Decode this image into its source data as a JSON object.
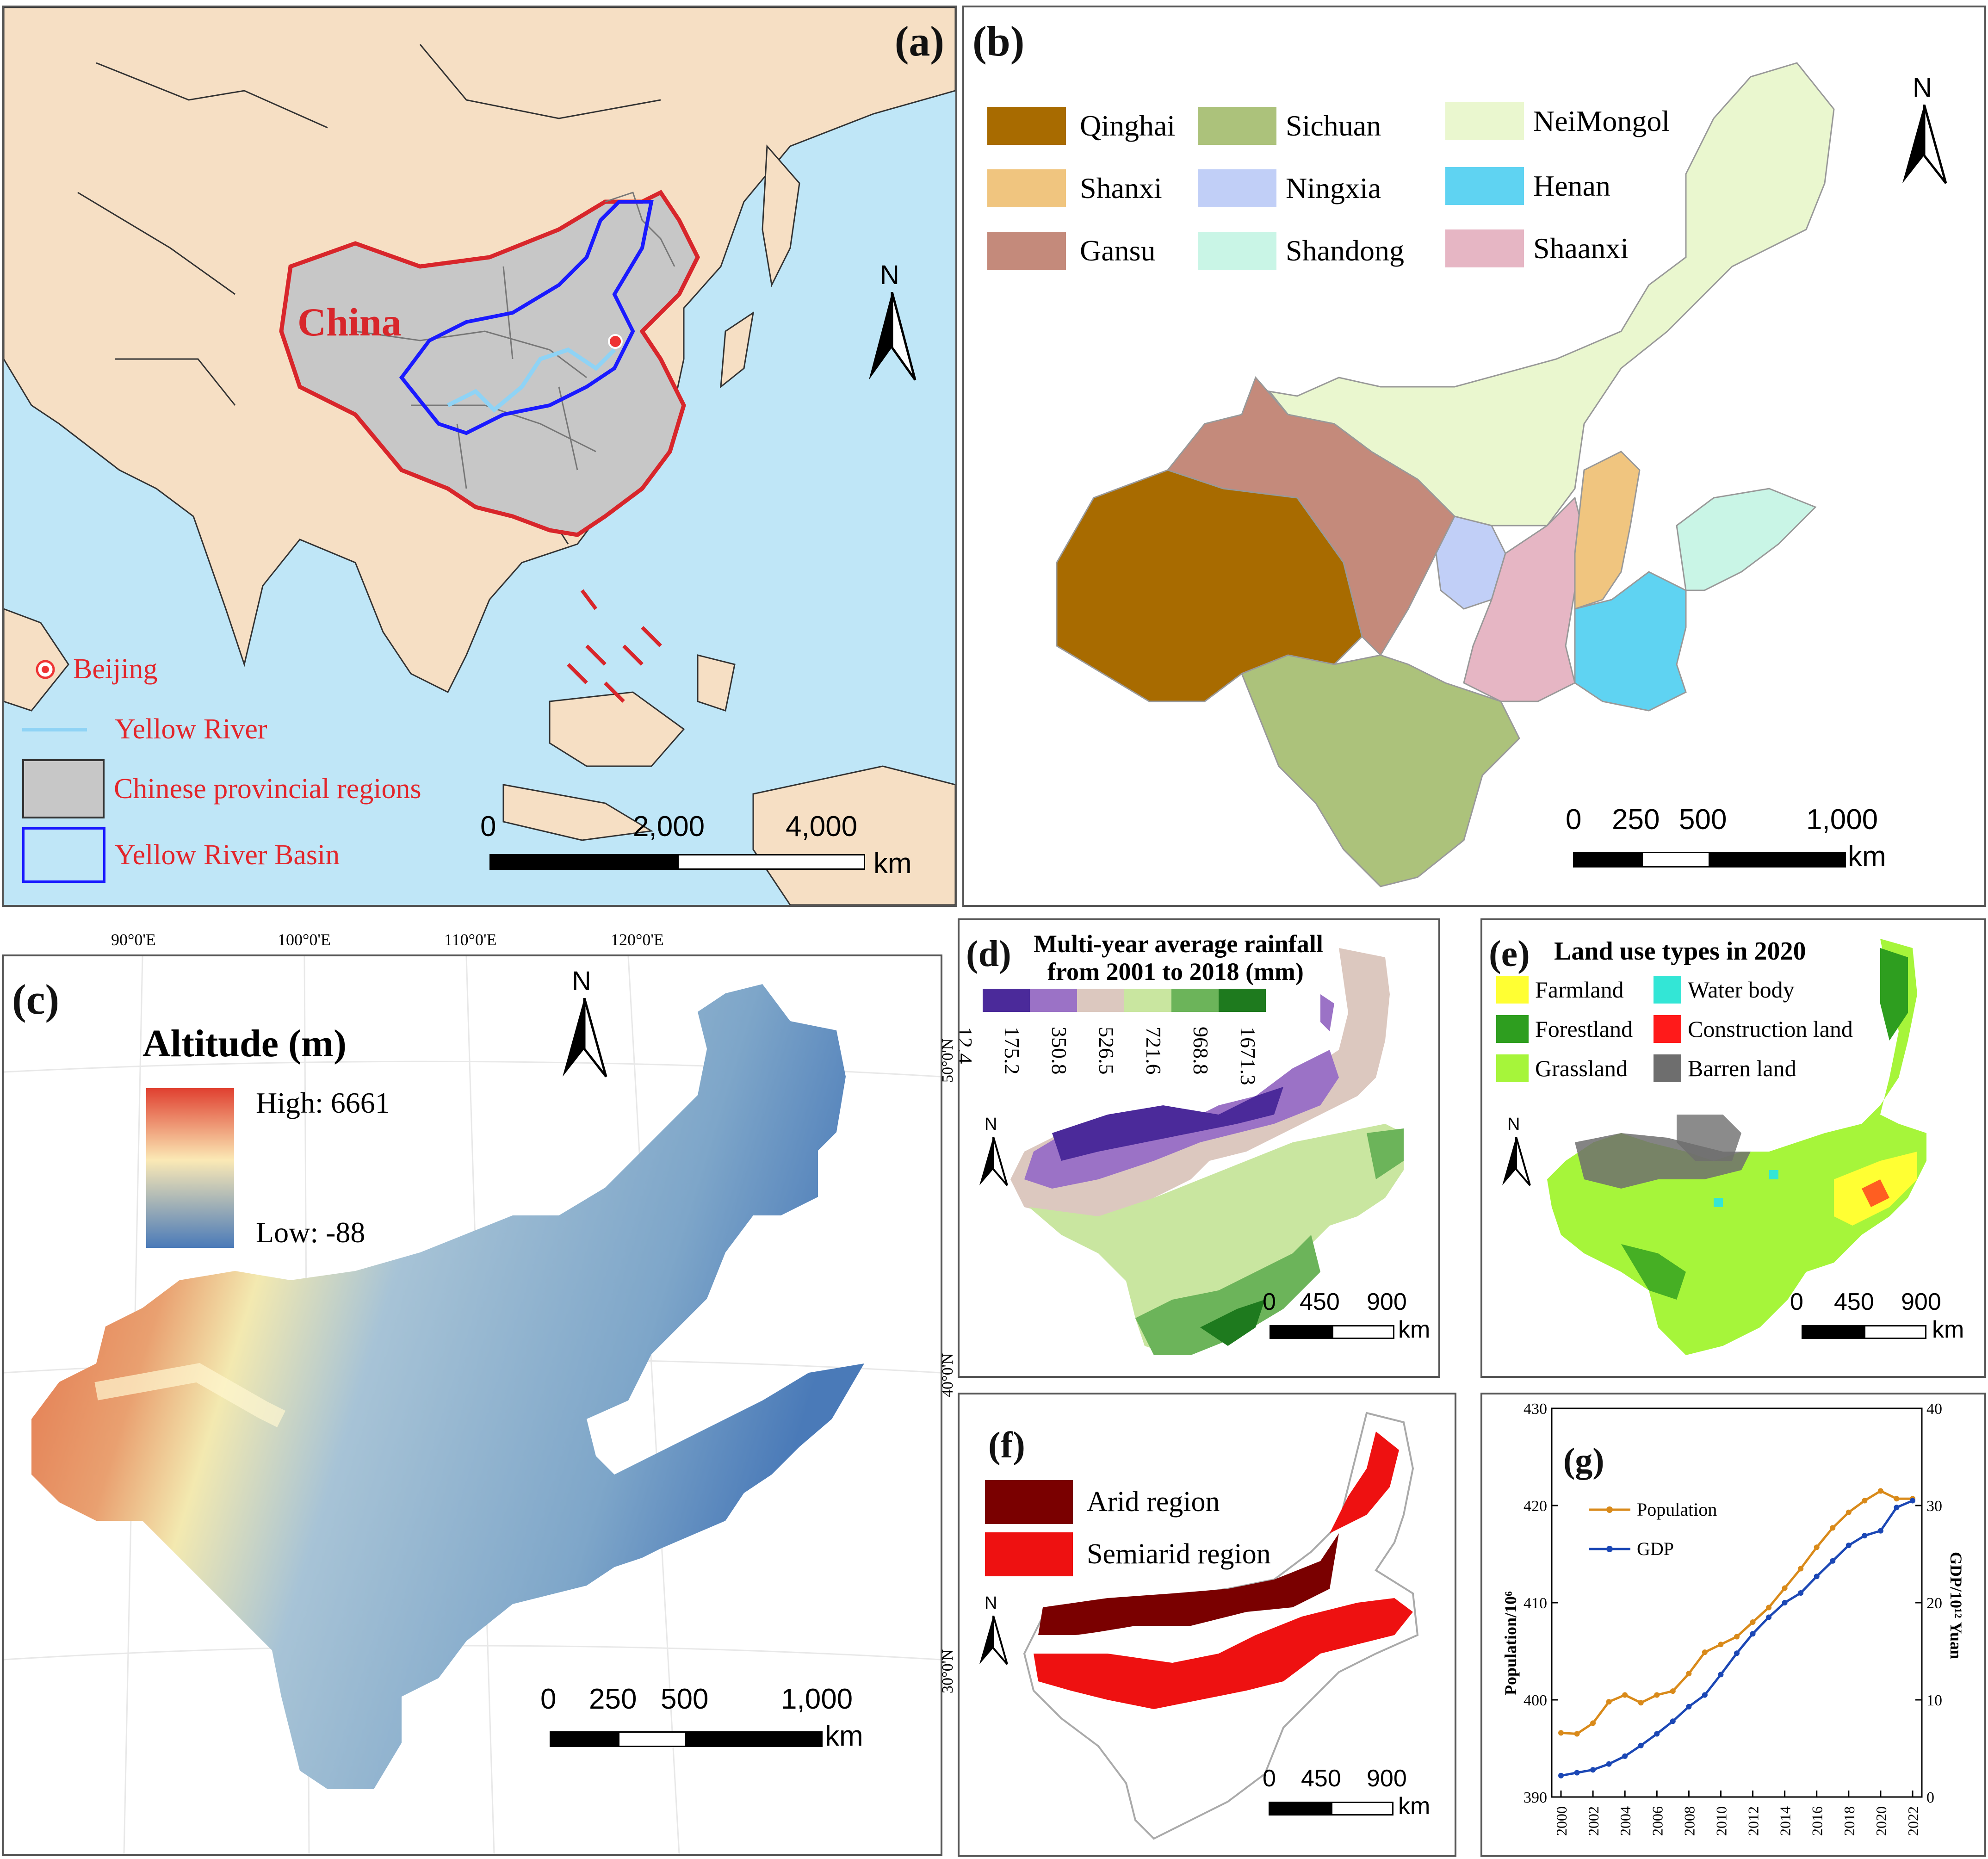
{
  "panel_a": {
    "label": "(a)",
    "china_label": "China",
    "legend": [
      {
        "key": "beijing",
        "text": "Beijing"
      },
      {
        "key": "river",
        "text": "Yellow River"
      },
      {
        "key": "provinces",
        "text": "Chinese provincial regions"
      },
      {
        "key": "basin",
        "text": "Yellow River Basin"
      }
    ],
    "north": "N",
    "scale": {
      "ticks": [
        "0",
        "2,000",
        "4,000"
      ],
      "unit": "km"
    }
  },
  "panel_b": {
    "label": "(b)",
    "north": "N",
    "legend": [
      {
        "name": "Qinghai",
        "color": "#a86b00"
      },
      {
        "name": "Sichuan",
        "color": "#acc27b"
      },
      {
        "name": "NeiMongol",
        "color": "#eaf7cf"
      },
      {
        "name": "Shanxi",
        "color": "#f0c57f"
      },
      {
        "name": "Ningxia",
        "color": "#c1cff7"
      },
      {
        "name": "Henan",
        "color": "#5fd3f2"
      },
      {
        "name": "Gansu",
        "color": "#c48a7b"
      },
      {
        "name": "Shandong",
        "color": "#c9f5e6"
      },
      {
        "name": "Shaanxi",
        "color": "#e6b6c4"
      }
    ],
    "scale": {
      "ticks": [
        "0",
        "250",
        "500",
        "1,000"
      ],
      "unit": "km"
    }
  },
  "panel_c": {
    "label": "(c)",
    "north": "N",
    "legend_title": "Altitude (m)",
    "high": "High: 6661",
    "low": "Low: -88",
    "lon_labels": [
      "90°0'E",
      "100°0'E",
      "110°0'E",
      "120°0'E"
    ],
    "lat_labels": [
      "50°0'N",
      "40°0'N",
      "30°0'N"
    ],
    "scale": {
      "ticks": [
        "0",
        "250",
        "500",
        "1,000"
      ],
      "unit": "km"
    }
  },
  "panel_d": {
    "label": "(d)",
    "title_line1": "Multi-year average rainfall",
    "title_line2": "from 2001 to 2018 (mm)",
    "north": "N",
    "class_colors": [
      "#4b2a9a",
      "#9b72c6",
      "#dcc8bf",
      "#c9e6a0",
      "#6cb45a",
      "#1e7a1e"
    ],
    "breaks": [
      "12.4",
      "175.2",
      "350.8",
      "526.5",
      "721.6",
      "968.8",
      "1671.3"
    ],
    "scale": {
      "ticks": [
        "0",
        "450",
        "900"
      ],
      "unit": "km"
    }
  },
  "panel_e": {
    "label": "(e)",
    "title": "Land use types in 2020",
    "north": "N",
    "legend": [
      {
        "name": "Farmland",
        "color": "#ffff33"
      },
      {
        "name": "Water body",
        "color": "#33e6d6"
      },
      {
        "name": "Forestland",
        "color": "#2e9e1f"
      },
      {
        "name": "Construction land",
        "color": "#ff1a1a"
      },
      {
        "name": "Grassland",
        "color": "#a6f53a"
      },
      {
        "name": "Barren land",
        "color": "#6e6e6e"
      }
    ],
    "scale": {
      "ticks": [
        "0",
        "450",
        "900"
      ],
      "unit": "km"
    }
  },
  "panel_f": {
    "label": "(f)",
    "north": "N",
    "legend": [
      {
        "name": "Arid region",
        "color": "#7a0000"
      },
      {
        "name": "Semiarid region",
        "color": "#ee1111"
      }
    ],
    "scale": {
      "ticks": [
        "0",
        "450",
        "900"
      ],
      "unit": "km"
    }
  },
  "panel_g": {
    "label": "(g)",
    "left_axis_label": "Population/10⁶",
    "right_axis_label": "GDP/10¹² Yuan"
  },
  "chart_data": {
    "type": "line",
    "x": [
      2000,
      2001,
      2002,
      2003,
      2004,
      2005,
      2006,
      2007,
      2008,
      2009,
      2010,
      2011,
      2012,
      2013,
      2014,
      2015,
      2016,
      2017,
      2018,
      2019,
      2020,
      2021,
      2022
    ],
    "x_ticks": [
      "2000",
      "2002",
      "2004",
      "2006",
      "2008",
      "2010",
      "2012",
      "2014",
      "2016",
      "2018",
      "2020",
      "2022"
    ],
    "y_left": {
      "ticks": [
        "390",
        "400",
        "410",
        "420",
        "430"
      ],
      "range": [
        390,
        430
      ]
    },
    "y_right": {
      "ticks": [
        "0",
        "10",
        "20",
        "30",
        "40"
      ],
      "range": [
        0,
        40
      ]
    },
    "series": [
      {
        "name": "Population",
        "axis": "left",
        "color": "#d98a1a",
        "values": [
          396.6,
          396.5,
          397.6,
          399.8,
          400.5,
          399.7,
          400.5,
          400.9,
          402.7,
          404.9,
          405.7,
          406.5,
          408.0,
          409.5,
          411.5,
          413.5,
          415.7,
          417.7,
          419.3,
          420.5,
          421.5,
          420.7,
          420.7
        ]
      },
      {
        "name": "GDP",
        "axis": "right",
        "color": "#1b47b5",
        "values": [
          2.2,
          2.5,
          2.8,
          3.4,
          4.2,
          5.3,
          6.5,
          7.8,
          9.3,
          10.5,
          12.6,
          14.8,
          16.8,
          18.5,
          20.0,
          21.0,
          22.7,
          24.3,
          25.9,
          26.9,
          27.4,
          29.8,
          30.5
        ]
      }
    ]
  }
}
